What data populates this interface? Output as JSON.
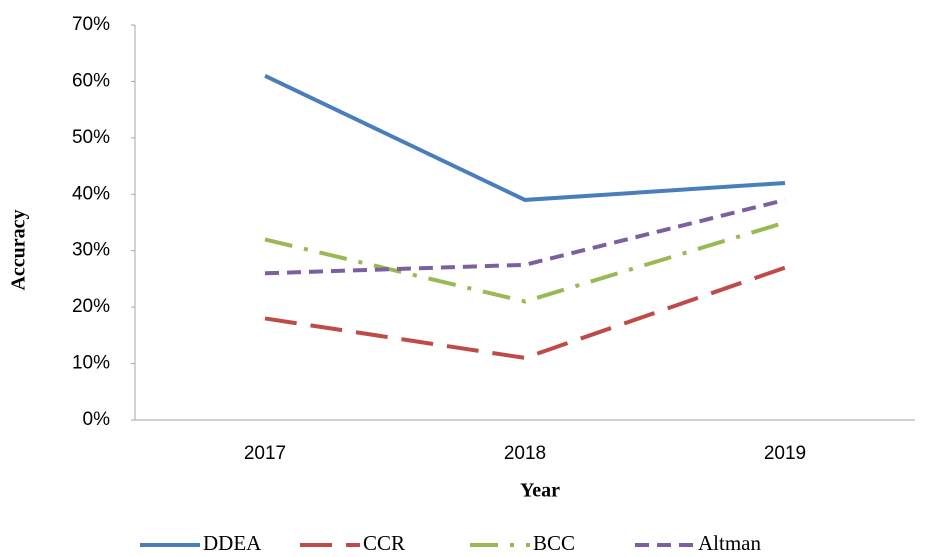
{
  "chart_data": {
    "type": "line",
    "x_label": "Year",
    "y_label": "Accuracy",
    "categories": [
      "2017",
      "2018",
      "2019"
    ],
    "series": [
      {
        "name": "DDEA",
        "color": "#4a7ebb",
        "dash": "solid",
        "values": [
          61,
          39,
          42
        ]
      },
      {
        "name": "CCR",
        "color": "#be4b48",
        "dash": "long-dash",
        "values": [
          18,
          11,
          27
        ]
      },
      {
        "name": "BCC",
        "color": "#98b954",
        "dash": "dash-dot",
        "values": [
          32,
          21,
          35
        ]
      },
      {
        "name": "Altman",
        "color": "#7d5fa0",
        "dash": "short-dash",
        "values": [
          26,
          27.5,
          39
        ]
      }
    ],
    "ylim": [
      0,
      70
    ],
    "yticks": [
      {
        "value": 0,
        "label": "0%"
      },
      {
        "value": 10,
        "label": "10%"
      },
      {
        "value": 20,
        "label": "20%"
      },
      {
        "value": 30,
        "label": "30%"
      },
      {
        "value": 40,
        "label": "40%"
      },
      {
        "value": 50,
        "label": "50%"
      },
      {
        "value": 60,
        "label": "60%"
      },
      {
        "value": 70,
        "label": "70%"
      }
    ],
    "grid": false,
    "legend": "bottom"
  }
}
